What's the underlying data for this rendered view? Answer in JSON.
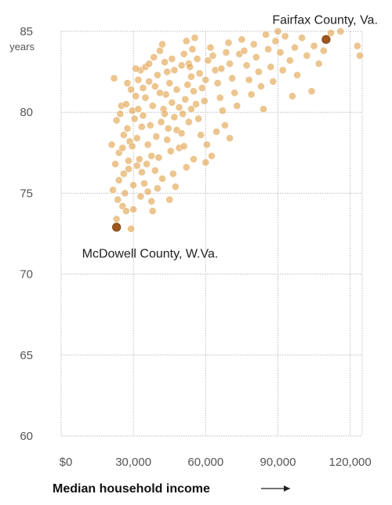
{
  "chart_data": {
    "type": "scatter",
    "xlabel": "Median household income",
    "ylabel_unit": "years",
    "xlim": [
      0,
      125000
    ],
    "ylim": [
      60,
      85
    ],
    "x_ticks": [
      0,
      30000,
      60000,
      90000,
      120000
    ],
    "x_tick_labels": [
      "$0",
      "30,000",
      "60,000",
      "90,000",
      "120,000"
    ],
    "y_ticks": [
      60,
      65,
      70,
      75,
      80,
      85
    ],
    "y_tick_labels": [
      "60",
      "65",
      "70",
      "75",
      "80",
      "85"
    ],
    "grid": true,
    "colors": {
      "point": "#e0a24a",
      "highlight": "#a0561c",
      "grid": "#bdbdbd"
    },
    "highlights": [
      {
        "label": "Fairfax County, Va.",
        "x": 110000,
        "y": 84.5
      },
      {
        "label": "McDowell County, W.Va.",
        "x": 23000,
        "y": 72.9
      }
    ],
    "points": [
      [
        22000,
        82.1
      ],
      [
        25000,
        80.4
      ],
      [
        27000,
        80.5
      ],
      [
        23000,
        79.5
      ],
      [
        21000,
        78.0
      ],
      [
        24000,
        77.5
      ],
      [
        22500,
        76.8
      ],
      [
        26000,
        76.2
      ],
      [
        24000,
        75.8
      ],
      [
        21500,
        75.2
      ],
      [
        23500,
        74.6
      ],
      [
        25500,
        74.2
      ],
      [
        27000,
        73.9
      ],
      [
        23000,
        73.4
      ],
      [
        29000,
        72.8
      ],
      [
        26500,
        75.0
      ],
      [
        28000,
        76.5
      ],
      [
        30000,
        74.0
      ],
      [
        28500,
        78.2
      ],
      [
        27500,
        79.0
      ],
      [
        29500,
        80.1
      ],
      [
        31000,
        81.0
      ],
      [
        32000,
        82.0
      ],
      [
        33000,
        82.6
      ],
      [
        34000,
        81.5
      ],
      [
        35000,
        82.8
      ],
      [
        30500,
        79.6
      ],
      [
        31500,
        78.4
      ],
      [
        32500,
        77.1
      ],
      [
        33500,
        76.3
      ],
      [
        34500,
        75.6
      ],
      [
        35500,
        76.8
      ],
      [
        36000,
        78.0
      ],
      [
        37000,
        79.2
      ],
      [
        38000,
        80.4
      ],
      [
        39000,
        81.6
      ],
      [
        40000,
        82.3
      ],
      [
        36500,
        83.0
      ],
      [
        38500,
        83.4
      ],
      [
        41000,
        83.8
      ],
      [
        42000,
        84.2
      ],
      [
        43000,
        83.1
      ],
      [
        44000,
        82.5
      ],
      [
        45000,
        81.8
      ],
      [
        46000,
        80.6
      ],
      [
        47000,
        79.7
      ],
      [
        48000,
        78.9
      ],
      [
        49000,
        77.8
      ],
      [
        40500,
        77.2
      ],
      [
        39500,
        78.5
      ],
      [
        41500,
        79.4
      ],
      [
        42500,
        80.2
      ],
      [
        43500,
        81.1
      ],
      [
        44500,
        79.0
      ],
      [
        45500,
        77.6
      ],
      [
        46500,
        76.2
      ],
      [
        47500,
        75.4
      ],
      [
        36000,
        75.1
      ],
      [
        37500,
        74.5
      ],
      [
        33000,
        74.8
      ],
      [
        30000,
        75.5
      ],
      [
        28000,
        77.0
      ],
      [
        26000,
        78.6
      ],
      [
        24500,
        79.9
      ],
      [
        29000,
        81.4
      ],
      [
        31000,
        82.7
      ],
      [
        50000,
        82.9
      ],
      [
        51000,
        83.6
      ],
      [
        52000,
        84.4
      ],
      [
        53000,
        83.0
      ],
      [
        54000,
        82.2
      ],
      [
        55000,
        81.3
      ],
      [
        56000,
        80.5
      ],
      [
        57000,
        79.6
      ],
      [
        58000,
        78.6
      ],
      [
        50500,
        79.9
      ],
      [
        51500,
        80.8
      ],
      [
        52500,
        81.7
      ],
      [
        53500,
        82.8
      ],
      [
        54500,
        83.9
      ],
      [
        55500,
        84.6
      ],
      [
        56500,
        83.3
      ],
      [
        57500,
        82.4
      ],
      [
        58500,
        81.5
      ],
      [
        59500,
        80.7
      ],
      [
        60000,
        82.0
      ],
      [
        61000,
        83.2
      ],
      [
        62000,
        84.0
      ],
      [
        63000,
        83.5
      ],
      [
        64000,
        82.6
      ],
      [
        65000,
        81.8
      ],
      [
        66000,
        80.9
      ],
      [
        67000,
        80.1
      ],
      [
        68000,
        79.2
      ],
      [
        60500,
        78.0
      ],
      [
        62500,
        77.3
      ],
      [
        64500,
        78.8
      ],
      [
        66500,
        82.7
      ],
      [
        68500,
        83.7
      ],
      [
        69500,
        84.3
      ],
      [
        70000,
        83.0
      ],
      [
        71000,
        82.1
      ],
      [
        72000,
        81.2
      ],
      [
        73000,
        80.4
      ],
      [
        74000,
        83.6
      ],
      [
        75000,
        84.5
      ],
      [
        76000,
        83.8
      ],
      [
        77000,
        82.9
      ],
      [
        78000,
        82.0
      ],
      [
        79000,
        81.1
      ],
      [
        80000,
        84.2
      ],
      [
        81000,
        83.4
      ],
      [
        82000,
        82.5
      ],
      [
        83000,
        81.6
      ],
      [
        84000,
        80.2
      ],
      [
        85000,
        84.8
      ],
      [
        86000,
        83.9
      ],
      [
        87000,
        82.8
      ],
      [
        88000,
        81.9
      ],
      [
        89000,
        84.4
      ],
      [
        90000,
        85.0
      ],
      [
        91000,
        83.7
      ],
      [
        92000,
        82.6
      ],
      [
        93000,
        84.7
      ],
      [
        95000,
        83.2
      ],
      [
        96000,
        81.0
      ],
      [
        97000,
        84.0
      ],
      [
        98000,
        82.3
      ],
      [
        100000,
        84.6
      ],
      [
        102000,
        83.5
      ],
      [
        104000,
        81.3
      ],
      [
        105000,
        84.1
      ],
      [
        107000,
        83.0
      ],
      [
        109000,
        83.8
      ],
      [
        112000,
        84.9
      ],
      [
        123000,
        84.1
      ],
      [
        124000,
        83.5
      ],
      [
        116000,
        85.0
      ],
      [
        45000,
        74.6
      ],
      [
        42000,
        75.9
      ],
      [
        38000,
        73.9
      ],
      [
        55000,
        77.1
      ],
      [
        60000,
        76.9
      ],
      [
        70000,
        78.4
      ],
      [
        34000,
        79.8
      ],
      [
        35000,
        80.9
      ],
      [
        36500,
        81.9
      ],
      [
        37500,
        77.3
      ],
      [
        39000,
        76.4
      ],
      [
        40000,
        75.3
      ],
      [
        41000,
        81.2
      ],
      [
        43000,
        79.9
      ],
      [
        44000,
        78.3
      ],
      [
        46000,
        83.3
      ],
      [
        47000,
        82.6
      ],
      [
        48000,
        81.4
      ],
      [
        49000,
        80.3
      ],
      [
        50000,
        78.7
      ],
      [
        51000,
        77.9
      ],
      [
        52000,
        76.6
      ],
      [
        53000,
        79.4
      ],
      [
        54000,
        80.2
      ],
      [
        27500,
        81.8
      ],
      [
        25500,
        77.8
      ],
      [
        32000,
        80.2
      ],
      [
        33500,
        79.1
      ],
      [
        31500,
        76.7
      ],
      [
        29500,
        77.9
      ]
    ]
  }
}
